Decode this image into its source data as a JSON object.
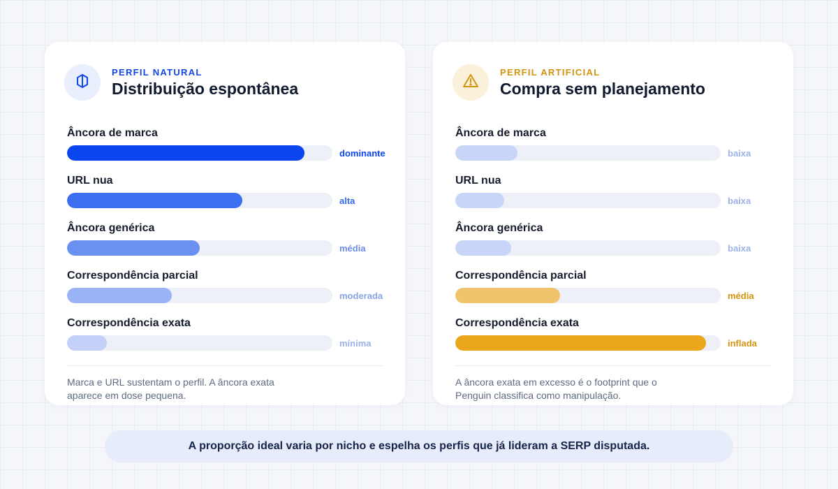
{
  "colors": {
    "natural_accent": "#1346e6",
    "artificial_accent": "#d4940f",
    "track": "#edf0f7"
  },
  "cards": [
    {
      "id": "natural",
      "icon": "shield-icon",
      "eyebrow": "PERFIL NATURAL",
      "title": "Distribuição espontânea",
      "rows": [
        {
          "label": "Âncora de marca",
          "level": "dominante",
          "value": 0.895,
          "color": "#0a45f0",
          "level_color": "#0a45f0"
        },
        {
          "label": "URL nua",
          "level": "alta",
          "value": 0.66,
          "color": "#3b6ff0",
          "level_color": "#3566ec"
        },
        {
          "label": "Âncora genérica",
          "level": "média",
          "value": 0.5,
          "color": "#6a91f2",
          "level_color": "#6a8ce8"
        },
        {
          "label": "Correspondência parcial",
          "level": "moderada",
          "value": 0.395,
          "color": "#9ab3f6",
          "level_color": "#8aa3e6"
        },
        {
          "label": "Correspondência exata",
          "level": "mínima",
          "value": 0.15,
          "color": "#c3d1f8",
          "level_color": "#9fb2e6"
        }
      ],
      "note": "Marca e URL sustentam o perfil. A âncora exata aparece em dose pequena."
    },
    {
      "id": "artificial",
      "icon": "warning-icon",
      "eyebrow": "PERFIL ARTIFICIAL",
      "title": "Compra sem planejamento",
      "rows": [
        {
          "label": "Âncora de marca",
          "level": "baixa",
          "value": 0.235,
          "color": "#c8d4f8",
          "level_color": "#9fb2e6"
        },
        {
          "label": "URL nua",
          "level": "baixa",
          "value": 0.185,
          "color": "#c8d4f8",
          "level_color": "#9fb2e6"
        },
        {
          "label": "Âncora genérica",
          "level": "baixa",
          "value": 0.21,
          "color": "#c8d4f8",
          "level_color": "#9fb2e6"
        },
        {
          "label": "Correspondência parcial",
          "level": "média",
          "value": 0.395,
          "color": "#f0c36c",
          "level_color": "#d4940f"
        },
        {
          "label": "Correspondência exata",
          "level": "inflada",
          "value": 0.945,
          "color": "#eaa71c",
          "level_color": "#d4940f"
        }
      ],
      "note": "A âncora exata em excesso é o footprint que o Penguin classifica como manipulação."
    }
  ],
  "banner": "A proporção ideal varia por nicho e espelha os perfis que já lideram a SERP disputada."
}
